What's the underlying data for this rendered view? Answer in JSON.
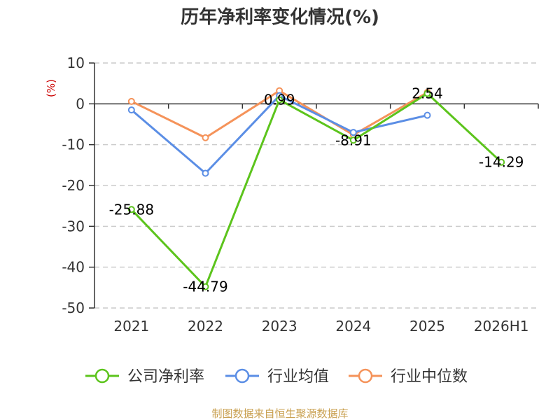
{
  "chart_data": {
    "type": "line",
    "title": "历年净利率变化情况(%)",
    "ylabel": "(%)",
    "ylim": [
      -50,
      10
    ],
    "yticks": [
      10,
      0,
      -10,
      -20,
      -30,
      -40,
      -50
    ],
    "grid": true,
    "categories": [
      "2021",
      "2022",
      "2023",
      "2024",
      "2025",
      "2026H1"
    ],
    "legend_position": "bottom",
    "series": [
      {
        "name": "公司净利率",
        "color": "#5cc41c",
        "values": [
          -25.88,
          -44.79,
          0.99,
          -8.91,
          2.54,
          -14.29
        ],
        "labels": [
          "-25.88",
          "-44.79",
          "0.99",
          "-8.91",
          "2.54",
          "-14.29"
        ]
      },
      {
        "name": "行业均值",
        "color": "#5b8ee5",
        "values": [
          -1.5,
          -17.0,
          2.0,
          -7.0,
          -2.8,
          null
        ]
      },
      {
        "name": "行业中位数",
        "color": "#f5935a",
        "values": [
          0.6,
          -8.3,
          3.2,
          -7.6,
          2.8,
          null
        ]
      }
    ]
  },
  "source": "制图数据来自恒生聚源数据库",
  "colors": {
    "ylabel": "#cc0000",
    "source": "#c9a050",
    "grid": "#cccccc",
    "axis": "#333333"
  }
}
